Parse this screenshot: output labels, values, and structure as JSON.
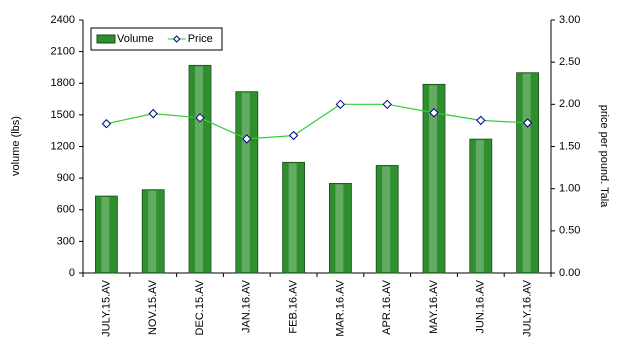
{
  "chart_data": {
    "type": "bar",
    "categories": [
      "JULY.15.AV",
      "NOV.15.AV",
      "DEC.15.AV",
      "JAN.16.AV",
      "FEB.16.AV",
      "MAR.16.AV",
      "APR.16.AV",
      "MAY.16.AV",
      "JUN.16.AV",
      "JULY.16.AV"
    ],
    "series": [
      {
        "name": "Volume",
        "type": "bar",
        "color": "#2f8f2f",
        "values": [
          730,
          790,
          1970,
          1720,
          1050,
          850,
          1020,
          1790,
          1270,
          1900
        ]
      },
      {
        "name": "Price",
        "type": "line",
        "axis": "y2",
        "color": "#33cc33",
        "marker_color": "#000080",
        "values": [
          1.77,
          1.89,
          1.84,
          1.59,
          1.63,
          2.0,
          2.0,
          1.9,
          1.81,
          1.78
        ]
      }
    ],
    "ylabel": "volume (lbs)",
    "y2label": "price per pound. Tala",
    "ylim": [
      0,
      2400
    ],
    "yticks": [
      0,
      300,
      600,
      900,
      1200,
      1500,
      1800,
      2100,
      2400
    ],
    "y2lim": [
      0,
      3
    ],
    "y2ticks": [
      {
        "value": 0,
        "label": "0.00"
      },
      {
        "value": 0.5,
        "label": "0.50"
      },
      {
        "value": 1,
        "label": "1.00"
      },
      {
        "value": 1.5,
        "label": "1.50"
      },
      {
        "value": 2,
        "label": "2.00"
      },
      {
        "value": 2.5,
        "label": "2.50"
      },
      {
        "value": 3,
        "label": "3.00"
      }
    ],
    "legend": "top-left"
  }
}
